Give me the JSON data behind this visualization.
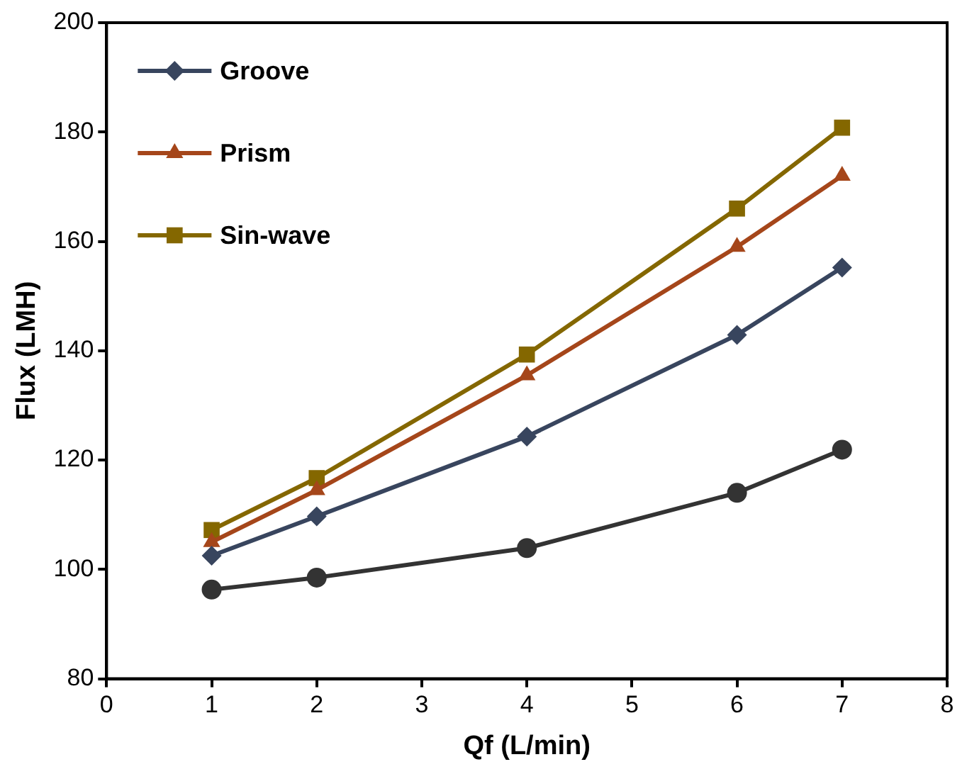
{
  "chart_data": {
    "type": "line",
    "xlabel": "Qf (L/min)",
    "ylabel": "Flux (LMH)",
    "x": [
      1,
      2,
      4,
      6,
      7
    ],
    "series": [
      {
        "color": "#333333",
        "marker": "circle",
        "values": [
          96.3,
          98.5,
          103.9,
          114.0,
          121.9
        ]
      },
      {
        "name": "Groove",
        "color": "#38455e",
        "marker": "diamond",
        "values": [
          102.5,
          109.7,
          124.3,
          142.9,
          155.2
        ]
      },
      {
        "name": "Prism",
        "color": "#a5461a",
        "marker": "triangle",
        "values": [
          105.0,
          114.5,
          135.5,
          159.0,
          172.0
        ]
      },
      {
        "name": "Sin-wave",
        "color": "#846700",
        "marker": "square",
        "values": [
          107.2,
          116.7,
          139.3,
          166.0,
          180.8
        ]
      }
    ],
    "xlim": [
      0,
      8
    ],
    "xticks": [
      0,
      1,
      2,
      3,
      4,
      5,
      6,
      7,
      8
    ],
    "ylim": [
      80,
      200
    ],
    "yticks": [
      80,
      100,
      120,
      140,
      160,
      180,
      200
    ],
    "grid": false,
    "legend": "top left",
    "line_style": "solid"
  }
}
